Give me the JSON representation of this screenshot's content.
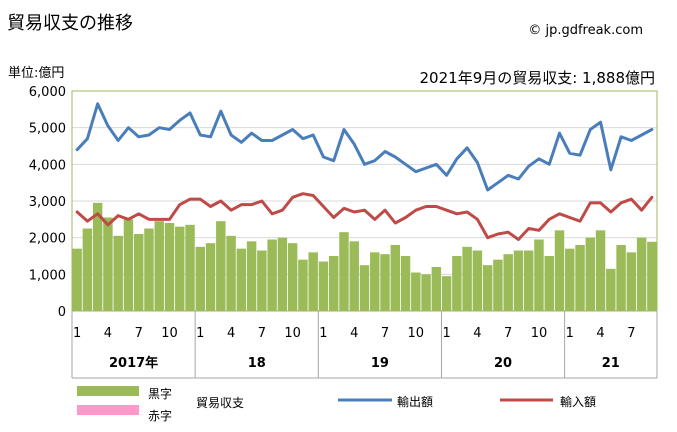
{
  "header": {
    "title": "貿易収支の推移",
    "source": "© jp.gdfreak.com",
    "unit": "単位:億円",
    "summary": "2021年9月の貿易収支: 1,888億円"
  },
  "colors": {
    "balance_black": "#9bbb59",
    "balance_red": "#ff99cc",
    "exports": "#4a7ebb",
    "imports": "#be4b48",
    "plot_border": "#9bbb59"
  },
  "legend": {
    "black_label": "黒字",
    "red_label": "赤字",
    "balance_label": "貿易収支",
    "exports_label": "輸出額",
    "imports_label": "輸入額"
  },
  "chart_data": {
    "type": "bar",
    "ylim": [
      0,
      6000
    ],
    "yticks": [
      "0",
      "1,000",
      "2,000",
      "3,000",
      "4,000",
      "5,000",
      "6,000"
    ],
    "month_ticks": [
      "1",
      "4",
      "7",
      "10",
      "1",
      "4",
      "7",
      "10",
      "1",
      "4",
      "7",
      "10",
      "1",
      "4",
      "7",
      "10",
      "1",
      "4",
      "7"
    ],
    "year_labels": [
      "2017年",
      "18",
      "19",
      "20",
      "21"
    ],
    "series": [
      {
        "name": "貿易収支",
        "values": [
          1700,
          2250,
          2950,
          2550,
          2050,
          2500,
          2100,
          2250,
          2450,
          2400,
          2300,
          2350,
          1750,
          1850,
          2450,
          2050,
          1700,
          1900,
          1650,
          1950,
          2000,
          1850,
          1400,
          1600,
          1350,
          1500,
          2150,
          1900,
          1250,
          1600,
          1550,
          1800,
          1500,
          1050,
          1000,
          1200,
          950,
          1500,
          1750,
          1650,
          1250,
          1400,
          1550,
          1650,
          1650,
          1950,
          1500,
          2200,
          1700,
          1800,
          2000,
          2200,
          1150,
          1800,
          1600,
          2000,
          1888
        ]
      },
      {
        "name": "輸出額",
        "values": [
          4400,
          4700,
          5650,
          5050,
          4650,
          5000,
          4750,
          4800,
          5000,
          4950,
          5200,
          5400,
          4800,
          4750,
          5450,
          4800,
          4600,
          4850,
          4650,
          4650,
          4800,
          4950,
          4700,
          4800,
          4200,
          4100,
          4950,
          4550,
          4000,
          4100,
          4350,
          4200,
          4000,
          3800,
          3900,
          4000,
          3700,
          4150,
          4450,
          4050,
          3300,
          3500,
          3700,
          3600,
          3950,
          4150,
          4000,
          4850,
          4300,
          4250,
          4950,
          5150,
          3850,
          4750,
          4650,
          4800,
          4950
        ]
      },
      {
        "name": "輸入額",
        "values": [
          2700,
          2450,
          2650,
          2350,
          2600,
          2500,
          2650,
          2500,
          2500,
          2500,
          2900,
          3050,
          3050,
          2850,
          3000,
          2750,
          2900,
          2900,
          3000,
          2650,
          2750,
          3100,
          3200,
          3150,
          2850,
          2550,
          2800,
          2700,
          2750,
          2500,
          2750,
          2400,
          2550,
          2750,
          2850,
          2850,
          2750,
          2650,
          2700,
          2500,
          2000,
          2100,
          2150,
          1950,
          2250,
          2200,
          2500,
          2650,
          2550,
          2450,
          2950,
          2950,
          2700,
          2950,
          3050,
          2750,
          3100
        ]
      }
    ]
  }
}
